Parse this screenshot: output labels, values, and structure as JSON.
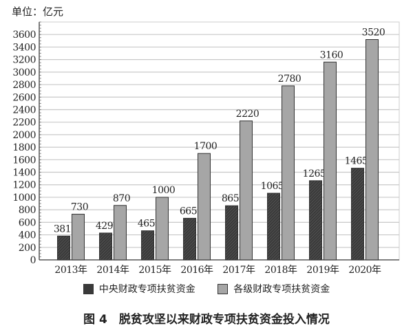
{
  "chart_data": {
    "type": "bar",
    "unit_label": "单位：亿元",
    "categories": [
      "2013年",
      "2014年",
      "2015年",
      "2016年",
      "2017年",
      "2018年",
      "2019年",
      "2020年"
    ],
    "series": [
      {
        "name": "中央财政专项扶贫资金",
        "color": "#3a3a3a",
        "pattern": "hatched",
        "values": [
          381,
          429,
          465,
          665,
          865,
          1065,
          1265,
          1465
        ]
      },
      {
        "name": "各级财政专项扶贫资金",
        "color": "#a6a6a6",
        "values": [
          730,
          870,
          1000,
          1700,
          2220,
          2780,
          3160,
          3520
        ]
      }
    ],
    "yticks": [
      0,
      200,
      400,
      600,
      800,
      1000,
      1200,
      1400,
      1600,
      1800,
      2000,
      2200,
      2400,
      2600,
      2800,
      3000,
      3200,
      3400,
      3600
    ],
    "ylim": [
      0,
      3800
    ],
    "grid": true,
    "legend_position": "bottom",
    "title": "图 4　脱贫攻坚以来财政专项扶贫资金投入情况"
  }
}
